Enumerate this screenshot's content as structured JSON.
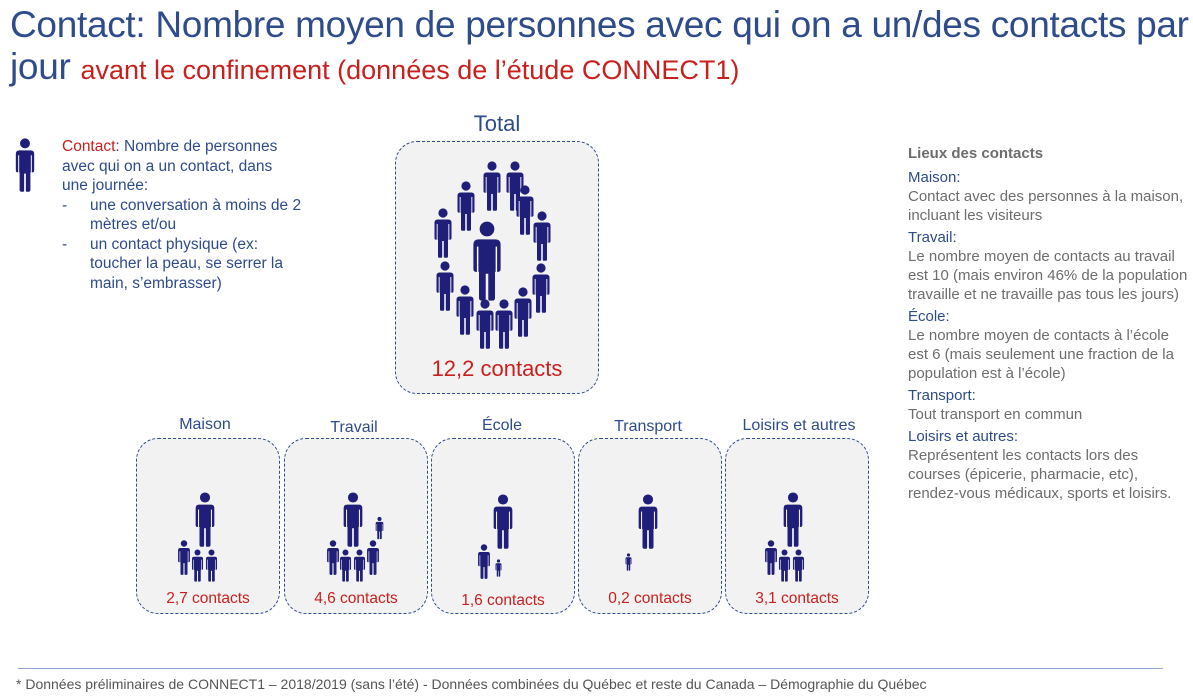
{
  "title": {
    "main": "Contact: Nombre moyen de personnes avec qui on a un/des contacts par jour",
    "sub": "avant le confinement (données de l’étude CONNECT1)"
  },
  "legend": {
    "term": "Contact",
    "definition": ": Nombre de personnes avec qui on a un contact, dans une journée:",
    "items": [
      "une conversation à moins de 2 mètres et/ou",
      "un contact physique (ex: toucher la peau, se serrer la main, s’embrasser)"
    ],
    "icon": "person-icon"
  },
  "total": {
    "label": "Total",
    "value": "12,2 contacts"
  },
  "categories": [
    {
      "label": "Maison",
      "value": "2,7 contacts"
    },
    {
      "label": "Travail",
      "value": "4,6 contacts"
    },
    {
      "label": "École",
      "value": "1,6 contacts"
    },
    {
      "label": "Transport",
      "value": "0,2 contacts"
    },
    {
      "label": "Loisirs et autres",
      "value": "3,1 contacts"
    }
  ],
  "side_panel": {
    "title": "Lieux des contacts",
    "sections": [
      {
        "heading": "Maison:",
        "text": "Contact avec des personnes à la maison, incluant les visiteurs"
      },
      {
        "heading": "Travail:",
        "text": "Le nombre moyen de contacts au travail est 10 (mais environ 46% de la population travaille et ne travaille pas tous les jours)"
      },
      {
        "heading": "École:",
        "text": "Le nombre moyen de contacts à l’école est 6 (mais seulement une fraction de la population est à l’école)"
      },
      {
        "heading": "Transport:",
        "text": "Tout transport en commun"
      },
      {
        "heading": "Loisirs et autres:",
        "text": "Représentent les contacts lors des courses (épicerie, pharmacie, etc), rendez-vous médicaux, sports et loisirs."
      }
    ]
  },
  "footer": "* Données préliminaires de CONNECT1 – 2018/2019 (sans l’été) - Données combinées du Québec et reste du Canada – Démographie du Québec",
  "colors": {
    "navy": "#1f1f7a",
    "blue_text": "#2e4b8b",
    "red": "#c8201e",
    "box_fill": "#f2f2f2"
  }
}
